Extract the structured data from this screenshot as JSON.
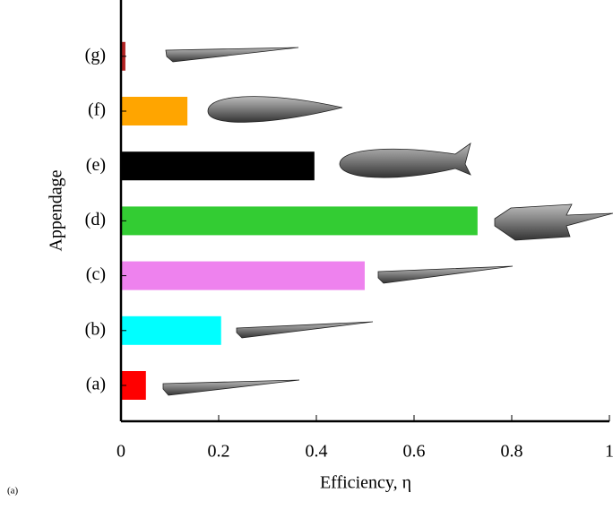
{
  "chart_data": {
    "type": "hbar",
    "x_label": "Efficiency, η",
    "y_label": "Appendage",
    "categories": [
      "(a)",
      "(b)",
      "(c)",
      "(d)",
      "(e)",
      "(f)",
      "(g)"
    ],
    "values": [
      0.051,
      0.205,
      0.499,
      0.73,
      0.396,
      0.136,
      0.009
    ],
    "colors": [
      "#ff0000",
      "#00ffff",
      "#ee82ee",
      "#33cc33",
      "#000000",
      "#ffa500",
      "#b22222"
    ],
    "xlim": [
      0,
      1
    ],
    "xticks": [
      0,
      0.2,
      0.4,
      0.6,
      0.8,
      1
    ]
  },
  "caption": "(a)"
}
